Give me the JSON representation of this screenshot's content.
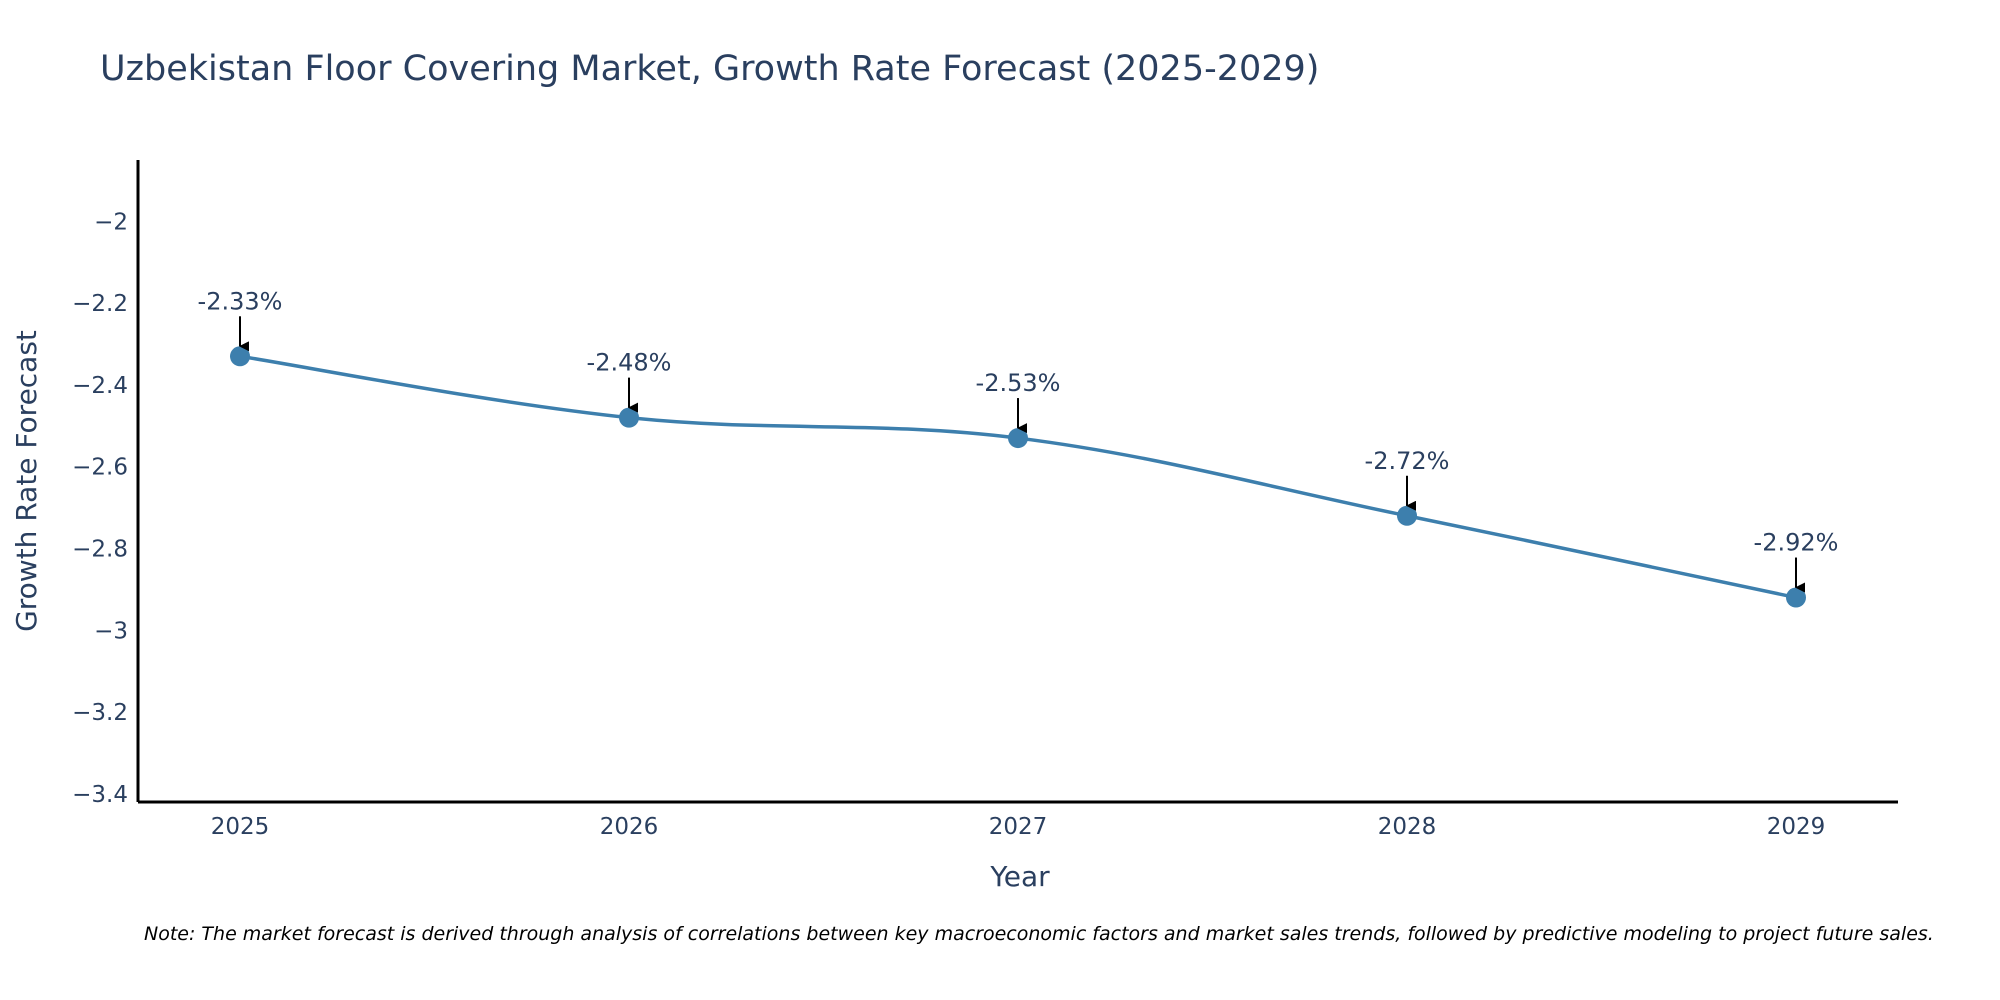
{
  "chart_data": {
    "type": "line",
    "title": "Uzbekistan Floor Covering Market, Growth Rate Forecast (2025-2029)",
    "xlabel": "Year",
    "ylabel": "Growth Rate Forecast",
    "categories": [
      "2025",
      "2026",
      "2027",
      "2028",
      "2029"
    ],
    "series": [
      {
        "name": "Growth Rate Forecast",
        "values": [
          -2.33,
          -2.48,
          -2.53,
          -2.72,
          -2.92
        ],
        "labels": [
          "-2.33%",
          "-2.48%",
          "-2.53%",
          "-2.72%",
          "-2.92%"
        ]
      }
    ],
    "ylim": [
      -3.42,
      -1.85
    ],
    "yticks": [
      -2,
      -2.2,
      -2.4,
      -2.6,
      -2.8,
      -3,
      -3.2,
      -3.4
    ],
    "ytick_labels": [
      "−2",
      "−2.2",
      "−2.4",
      "−2.6",
      "−2.8",
      "−3",
      "−3.2",
      "−3.4"
    ],
    "grid": false,
    "line_color": "#3d7fad",
    "note": "Note: The market forecast is derived through analysis of correlations between key macroeconomic factors and market sales trends, followed by predictive modeling to project future sales."
  }
}
